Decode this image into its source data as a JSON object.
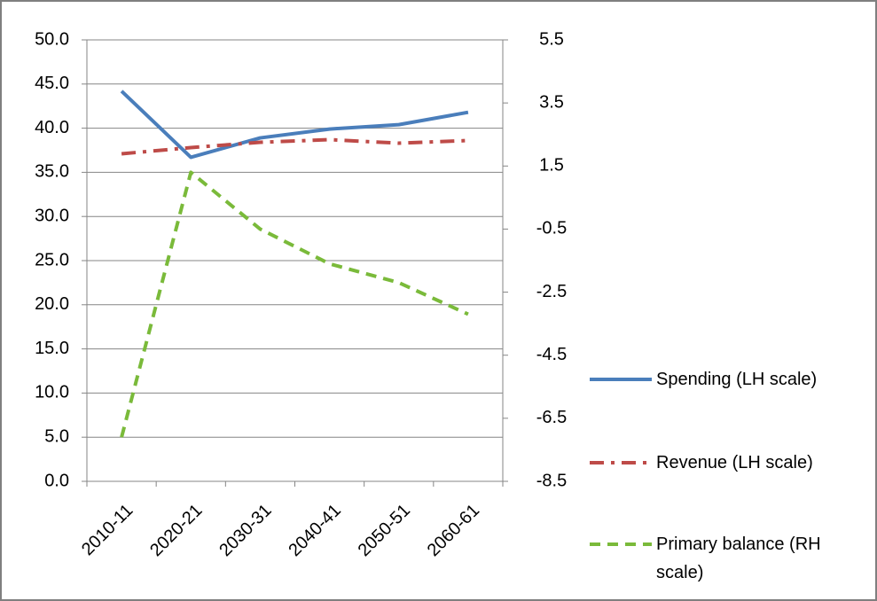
{
  "chart_data": {
    "type": "line",
    "categories": [
      "2010-11",
      "2020-21",
      "2030-31",
      "2040-41",
      "2050-51",
      "2060-61"
    ],
    "series": [
      {
        "name": "Spending (LH scale)",
        "color": "#4a7ebb",
        "dash": "solid",
        "values": [
          44.2,
          36.7,
          38.9,
          39.9,
          40.4,
          41.8
        ]
      },
      {
        "name": "Revenue (LH scale)",
        "color": "#be4b48",
        "dash": "dashdot",
        "values": [
          37.1,
          37.8,
          38.4,
          38.7,
          38.3,
          38.6
        ]
      },
      {
        "name": "Primary balance (RH scale)",
        "color": "#7aba3a",
        "dash": "dash",
        "axis": "y2",
        "values": [
          -7.1,
          1.3,
          -0.5,
          -1.6,
          -2.2,
          -3.2
        ]
      }
    ],
    "ylim": [
      0,
      50
    ],
    "yticks": [
      {
        "value": 0,
        "label": "0.0"
      },
      {
        "value": 5,
        "label": "5.0"
      },
      {
        "value": 10,
        "label": "10.0"
      },
      {
        "value": 15,
        "label": "15.0"
      },
      {
        "value": 20,
        "label": "20.0"
      },
      {
        "value": 25,
        "label": "25.0"
      },
      {
        "value": 30,
        "label": "30.0"
      },
      {
        "value": 35,
        "label": "35.0"
      },
      {
        "value": 40,
        "label": "40.0"
      },
      {
        "value": 45,
        "label": "45.0"
      },
      {
        "value": 50,
        "label": "50.0"
      }
    ],
    "y2lim": [
      -8.5,
      5.5
    ],
    "y2ticks": [
      -8.5,
      -6.5,
      -4.5,
      -2.5,
      -0.5,
      1.5,
      3.5,
      5.5
    ],
    "grid": true
  }
}
